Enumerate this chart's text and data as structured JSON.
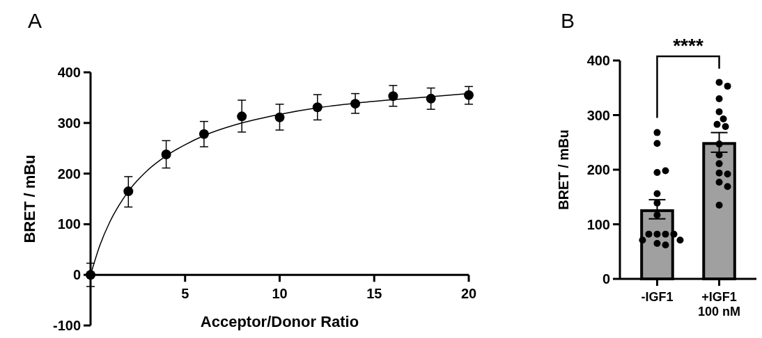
{
  "chart_data": [
    {
      "type": "scatter",
      "title": "A",
      "xlabel": "Acceptor/Donor Ratio",
      "ylabel": "BRET / mBu",
      "xlim": [
        0,
        20
      ],
      "xticks": [
        5,
        10,
        15,
        20
      ],
      "ylim": [
        -100,
        400
      ],
      "yticks": [
        -100,
        0,
        100,
        200,
        300,
        400
      ],
      "series": [
        {
          "type": "scatter",
          "marker": "circle",
          "color": "#000000",
          "x": [
            0,
            2,
            4,
            6,
            8,
            10,
            12,
            14,
            16,
            18,
            20
          ],
          "values": [
            0,
            165,
            238,
            278,
            313,
            311,
            331,
            338,
            353,
            348,
            355
          ],
          "errors": [
            [
              -23,
              23
            ],
            [
              134,
              194
            ],
            [
              211,
              265
            ],
            [
              253,
              303
            ],
            [
              282,
              345
            ],
            [
              286,
              337
            ],
            [
              306,
              356
            ],
            [
              319,
              358
            ],
            [
              333,
              374
            ],
            [
              327,
              369
            ],
            [
              337,
              372
            ]
          ]
        },
        {
          "type": "line",
          "marker": "none",
          "color": "#000000",
          "x": [
            0,
            0.5,
            1,
            1.5,
            2,
            3,
            4,
            5,
            6,
            8,
            10,
            12,
            14,
            16,
            18,
            20
          ],
          "values": [
            0,
            59,
            103,
            137,
            165,
            206,
            235,
            257,
            275,
            300,
            317,
            330,
            339,
            346,
            352,
            358
          ]
        }
      ]
    },
    {
      "type": "bar",
      "title": "B",
      "ylabel": "BRET / mBu",
      "categories": [
        "-IGF1",
        "+IGF1\n100 nM"
      ],
      "ylim": [
        0,
        400
      ],
      "yticks": [
        0,
        100,
        200,
        300,
        400
      ],
      "annotations": [
        "****"
      ],
      "series": [
        {
          "type": "bar",
          "color": "#a0a0a0",
          "values": [
            125,
            248
          ],
          "errors": [
            [
              110,
              145
            ],
            [
              232,
              268
            ]
          ]
        },
        {
          "type": "scatter",
          "marker": "circle",
          "color": "#000000",
          "x": [
            "-IGF1",
            "-IGF1",
            "-IGF1",
            "-IGF1",
            "-IGF1",
            "-IGF1",
            "-IGF1",
            "-IGF1",
            "-IGF1",
            "-IGF1",
            "-IGF1",
            "-IGF1",
            "-IGF1",
            "-IGF1",
            "-IGF1",
            "+IGF1\n100 nM",
            "+IGF1\n100 nM",
            "+IGF1\n100 nM",
            "+IGF1\n100 nM",
            "+IGF1\n100 nM",
            "+IGF1\n100 nM",
            "+IGF1\n100 nM",
            "+IGF1\n100 nM",
            "+IGF1\n100 nM",
            "+IGF1\n100 nM",
            "+IGF1\n100 nM",
            "+IGF1\n100 nM",
            "+IGF1\n100 nM",
            "+IGF1\n100 nM",
            "+IGF1\n100 nM"
          ],
          "values": [
            268,
            248,
            195,
            198,
            156,
            139,
            117,
            82,
            82,
            82,
            82,
            65,
            71,
            71,
            62,
            360,
            353,
            330,
            306,
            293,
            283,
            279,
            247,
            227,
            211,
            194,
            192,
            177,
            169,
            135
          ]
        }
      ]
    }
  ]
}
